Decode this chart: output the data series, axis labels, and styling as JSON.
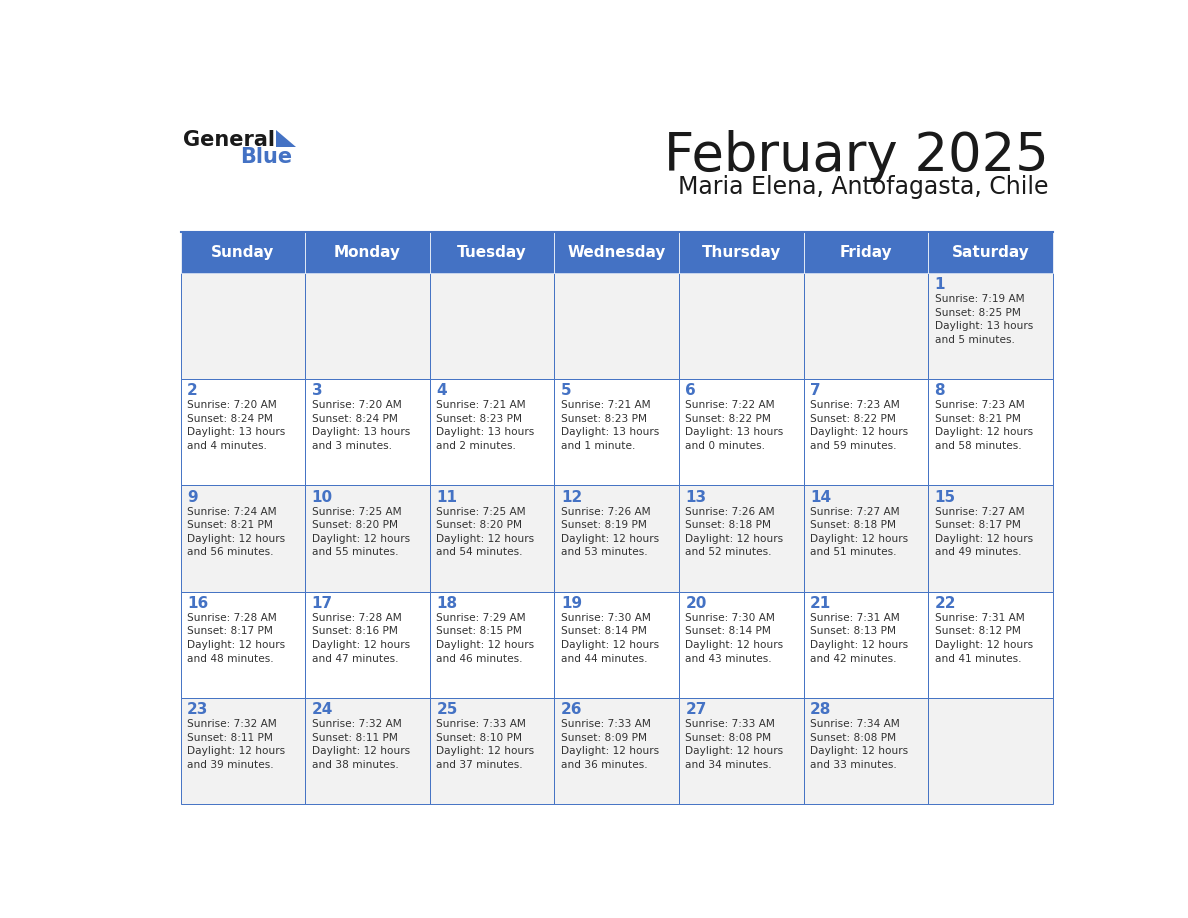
{
  "title": "February 2025",
  "subtitle": "Maria Elena, Antofagasta, Chile",
  "header_bg": "#4472C4",
  "header_text": "#FFFFFF",
  "row_bg_odd": "#F2F2F2",
  "row_bg_even": "#FFFFFF",
  "day_headers": [
    "Sunday",
    "Monday",
    "Tuesday",
    "Wednesday",
    "Thursday",
    "Friday",
    "Saturday"
  ],
  "cell_border": "#4472C4",
  "day_num_color": "#4472C4",
  "info_color": "#333333",
  "calendar": [
    [
      null,
      null,
      null,
      null,
      null,
      null,
      {
        "day": "1",
        "sunrise": "7:19 AM",
        "sunset": "8:25 PM",
        "daylight": "13 hours\nand 5 minutes."
      }
    ],
    [
      {
        "day": "2",
        "sunrise": "7:20 AM",
        "sunset": "8:24 PM",
        "daylight": "13 hours\nand 4 minutes."
      },
      {
        "day": "3",
        "sunrise": "7:20 AM",
        "sunset": "8:24 PM",
        "daylight": "13 hours\nand 3 minutes."
      },
      {
        "day": "4",
        "sunrise": "7:21 AM",
        "sunset": "8:23 PM",
        "daylight": "13 hours\nand 2 minutes."
      },
      {
        "day": "5",
        "sunrise": "7:21 AM",
        "sunset": "8:23 PM",
        "daylight": "13 hours\nand 1 minute."
      },
      {
        "day": "6",
        "sunrise": "7:22 AM",
        "sunset": "8:22 PM",
        "daylight": "13 hours\nand 0 minutes."
      },
      {
        "day": "7",
        "sunrise": "7:23 AM",
        "sunset": "8:22 PM",
        "daylight": "12 hours\nand 59 minutes."
      },
      {
        "day": "8",
        "sunrise": "7:23 AM",
        "sunset": "8:21 PM",
        "daylight": "12 hours\nand 58 minutes."
      }
    ],
    [
      {
        "day": "9",
        "sunrise": "7:24 AM",
        "sunset": "8:21 PM",
        "daylight": "12 hours\nand 56 minutes."
      },
      {
        "day": "10",
        "sunrise": "7:25 AM",
        "sunset": "8:20 PM",
        "daylight": "12 hours\nand 55 minutes."
      },
      {
        "day": "11",
        "sunrise": "7:25 AM",
        "sunset": "8:20 PM",
        "daylight": "12 hours\nand 54 minutes."
      },
      {
        "day": "12",
        "sunrise": "7:26 AM",
        "sunset": "8:19 PM",
        "daylight": "12 hours\nand 53 minutes."
      },
      {
        "day": "13",
        "sunrise": "7:26 AM",
        "sunset": "8:18 PM",
        "daylight": "12 hours\nand 52 minutes."
      },
      {
        "day": "14",
        "sunrise": "7:27 AM",
        "sunset": "8:18 PM",
        "daylight": "12 hours\nand 51 minutes."
      },
      {
        "day": "15",
        "sunrise": "7:27 AM",
        "sunset": "8:17 PM",
        "daylight": "12 hours\nand 49 minutes."
      }
    ],
    [
      {
        "day": "16",
        "sunrise": "7:28 AM",
        "sunset": "8:17 PM",
        "daylight": "12 hours\nand 48 minutes."
      },
      {
        "day": "17",
        "sunrise": "7:28 AM",
        "sunset": "8:16 PM",
        "daylight": "12 hours\nand 47 minutes."
      },
      {
        "day": "18",
        "sunrise": "7:29 AM",
        "sunset": "8:15 PM",
        "daylight": "12 hours\nand 46 minutes."
      },
      {
        "day": "19",
        "sunrise": "7:30 AM",
        "sunset": "8:14 PM",
        "daylight": "12 hours\nand 44 minutes."
      },
      {
        "day": "20",
        "sunrise": "7:30 AM",
        "sunset": "8:14 PM",
        "daylight": "12 hours\nand 43 minutes."
      },
      {
        "day": "21",
        "sunrise": "7:31 AM",
        "sunset": "8:13 PM",
        "daylight": "12 hours\nand 42 minutes."
      },
      {
        "day": "22",
        "sunrise": "7:31 AM",
        "sunset": "8:12 PM",
        "daylight": "12 hours\nand 41 minutes."
      }
    ],
    [
      {
        "day": "23",
        "sunrise": "7:32 AM",
        "sunset": "8:11 PM",
        "daylight": "12 hours\nand 39 minutes."
      },
      {
        "day": "24",
        "sunrise": "7:32 AM",
        "sunset": "8:11 PM",
        "daylight": "12 hours\nand 38 minutes."
      },
      {
        "day": "25",
        "sunrise": "7:33 AM",
        "sunset": "8:10 PM",
        "daylight": "12 hours\nand 37 minutes."
      },
      {
        "day": "26",
        "sunrise": "7:33 AM",
        "sunset": "8:09 PM",
        "daylight": "12 hours\nand 36 minutes."
      },
      {
        "day": "27",
        "sunrise": "7:33 AM",
        "sunset": "8:08 PM",
        "daylight": "12 hours\nand 34 minutes."
      },
      {
        "day": "28",
        "sunrise": "7:34 AM",
        "sunset": "8:08 PM",
        "daylight": "12 hours\nand 33 minutes."
      },
      null
    ]
  ],
  "logo_general_color": "#1a1a1a",
  "logo_blue_color": "#4472C4",
  "logo_triangle_color": "#4472C4",
  "title_color": "#1a1a1a",
  "subtitle_color": "#1a1a1a"
}
